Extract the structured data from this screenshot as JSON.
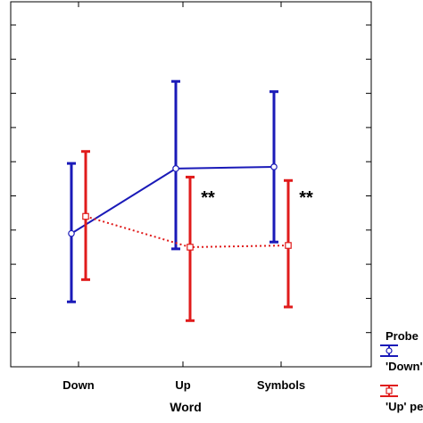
{
  "chart_data": {
    "type": "line",
    "xlabel": "Word",
    "ylabel": "",
    "categories": [
      "Down",
      "Up",
      "Symbols"
    ],
    "ylim": [
      0,
      10
    ],
    "grid": false,
    "series": [
      {
        "name": "'Down' pe",
        "color": "#1a1ab8",
        "linestyle": "solid",
        "marker": "circle",
        "values": [
          3.9,
          5.8,
          5.85
        ],
        "err_low": [
          1.9,
          3.45,
          3.65
        ],
        "err_high": [
          5.95,
          8.35,
          8.05
        ]
      },
      {
        "name": "'Up' pe",
        "color": "#e01b1b",
        "linestyle": "dotted",
        "marker": "square",
        "values": [
          4.4,
          3.5,
          3.55
        ],
        "err_low": [
          2.55,
          1.35,
          1.75
        ],
        "err_high": [
          6.3,
          5.55,
          5.45
        ]
      }
    ],
    "annotations": [
      {
        "category_index": 1,
        "text": "**"
      },
      {
        "category_index": 2,
        "text": "**"
      }
    ],
    "legend": {
      "title": "Probe",
      "position": "right"
    }
  }
}
